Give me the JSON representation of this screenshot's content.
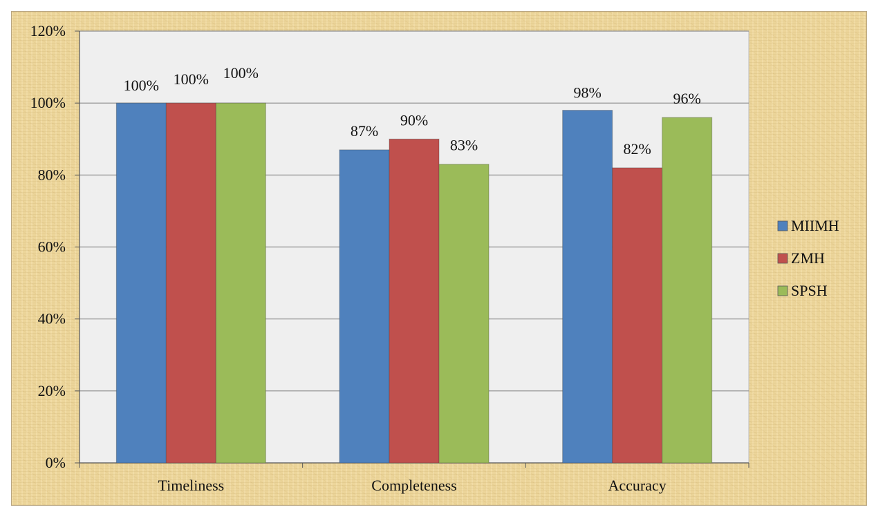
{
  "chart_data": {
    "type": "bar",
    "categories": [
      "Timeliness",
      "Completeness",
      "Accuracy"
    ],
    "series": [
      {
        "name": "MIIMH",
        "values": [
          100,
          87,
          98
        ],
        "labels": [
          "100%",
          "87%",
          "98%"
        ],
        "color": "#4f81bd"
      },
      {
        "name": "ZMH",
        "values": [
          100,
          90,
          82
        ],
        "labels": [
          "100%",
          "90%",
          "82%"
        ],
        "color": "#c0504d"
      },
      {
        "name": "SPSH",
        "values": [
          100,
          83,
          96
        ],
        "labels": [
          "100%",
          "83%",
          "96%"
        ],
        "color": "#9bbb59"
      }
    ],
    "ylim": [
      0,
      120
    ],
    "yticks": [
      "0%",
      "20%",
      "40%",
      "60%",
      "80%",
      "100%",
      "120%"
    ],
    "grid": true,
    "legend_position": "right",
    "plot_background": "#efefef",
    "frame_background": "#ecd59a"
  }
}
